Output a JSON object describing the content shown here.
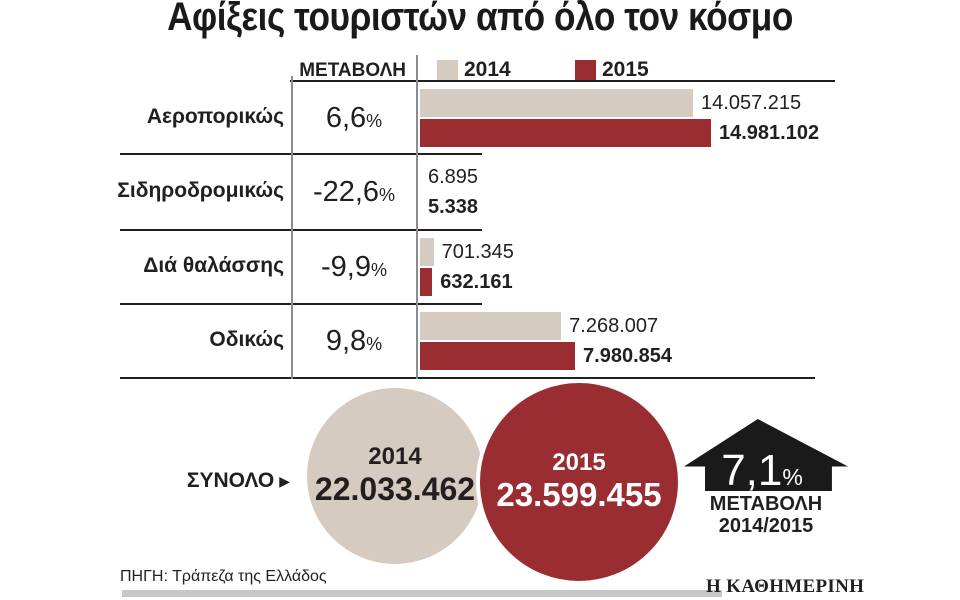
{
  "title": "Αφίξεις τουριστών από όλο τον κόσμο",
  "colors": {
    "beige_2014": "#d6cbc0",
    "red_2015": "#9a2d31",
    "text_black": "#231f20",
    "arrow_black": "#1a1a1a",
    "footer_gray": "#c6c7c9"
  },
  "table": {
    "change_header": "ΜΕΤΑΒΟΛΗ",
    "percent_suffix": "%",
    "legend": [
      {
        "year": "2014"
      },
      {
        "year": "2015"
      }
    ],
    "rows": [
      {
        "label": "Αεροπορικώς",
        "change": "6,6",
        "value_2014": "14.057.215",
        "value_2015": "14.981.102"
      },
      {
        "label": "Σιδηροδρομικώς",
        "change": "-22,6",
        "value_2014": "6.895",
        "value_2015": "5.338"
      },
      {
        "label": "Διά θαλάσσης",
        "change": "-9,9",
        "value_2014": "701.345",
        "value_2015": "632.161"
      },
      {
        "label": "Οδικώς",
        "change": "9,8",
        "value_2014": "7.268.007",
        "value_2015": "7.980.854"
      }
    ]
  },
  "totals": {
    "label": "ΣΥΝΟΛΟ",
    "pointer_icon": "▶",
    "y2014": {
      "year": "2014",
      "value": "22.033.462"
    },
    "y2015": {
      "year": "2015",
      "value": "23.599.455"
    },
    "arrow": {
      "percent": "7,1",
      "percent_suffix": "%",
      "caption_line1": "ΜΕΤΑΒΟΛΗ",
      "caption_line2": "2014/2015"
    }
  },
  "source": "ΠΗΓΗ: Τράπεζα της Ελλάδος",
  "logo": "Η ΚΑΘΗΜΕΡΙΝΗ",
  "chart_data": {
    "type": "bar",
    "orientation": "horizontal",
    "title": "Αφίξεις τουριστών από όλο τον κόσμο",
    "categories": [
      "Αεροπορικώς",
      "Σιδηροδρομικώς",
      "Διά θαλάσσης",
      "Οδικώς"
    ],
    "series": [
      {
        "name": "2014",
        "color": "#d6cbc0",
        "values": [
          14057215,
          6895,
          701345,
          7268007
        ]
      },
      {
        "name": "2015",
        "color": "#9a2d31",
        "values": [
          14981102,
          5338,
          632161,
          7980854
        ]
      }
    ],
    "change_pct": [
      6.6,
      -22.6,
      -9.9,
      9.8
    ],
    "totals": {
      "2014": 22033462,
      "2015": 23599455,
      "change_pct": 7.1
    },
    "value_axis_max": 14981102,
    "grid": false,
    "legend_position": "top",
    "source": "ΠΗΓΗ: Τράπεζα της Ελλάδος"
  }
}
